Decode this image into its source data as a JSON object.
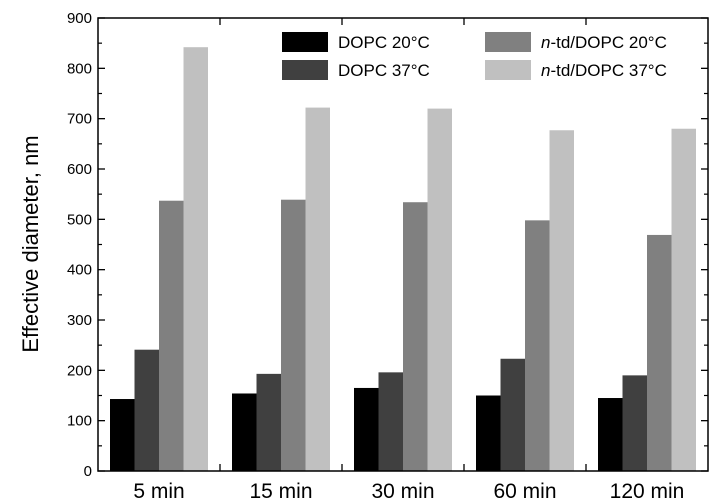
{
  "chart_data": {
    "type": "bar",
    "title": "",
    "xlabel": "",
    "ylabel": "Effective diameter, nm",
    "ylim": [
      0,
      900
    ],
    "yticks": [
      0,
      100,
      200,
      300,
      400,
      500,
      600,
      700,
      800,
      900
    ],
    "grid": false,
    "legend_position": "top-right",
    "categories": [
      "5 min",
      "15 min",
      "30 min",
      "60 min",
      "120 min"
    ],
    "series": [
      {
        "name": "DOPC 20°C",
        "color": "#000000",
        "values": [
          143,
          154,
          165,
          150,
          145
        ]
      },
      {
        "name": "DOPC 37°C",
        "color": "#404040",
        "values": [
          241,
          193,
          196,
          223,
          190
        ]
      },
      {
        "name": "n-td/DOPC 20°C",
        "color": "#808080",
        "values": [
          537,
          539,
          534,
          498,
          469
        ]
      },
      {
        "name": "n-td/DOPC 37°C",
        "color": "#c0c0c0",
        "values": [
          842,
          722,
          720,
          677,
          680
        ]
      }
    ]
  }
}
